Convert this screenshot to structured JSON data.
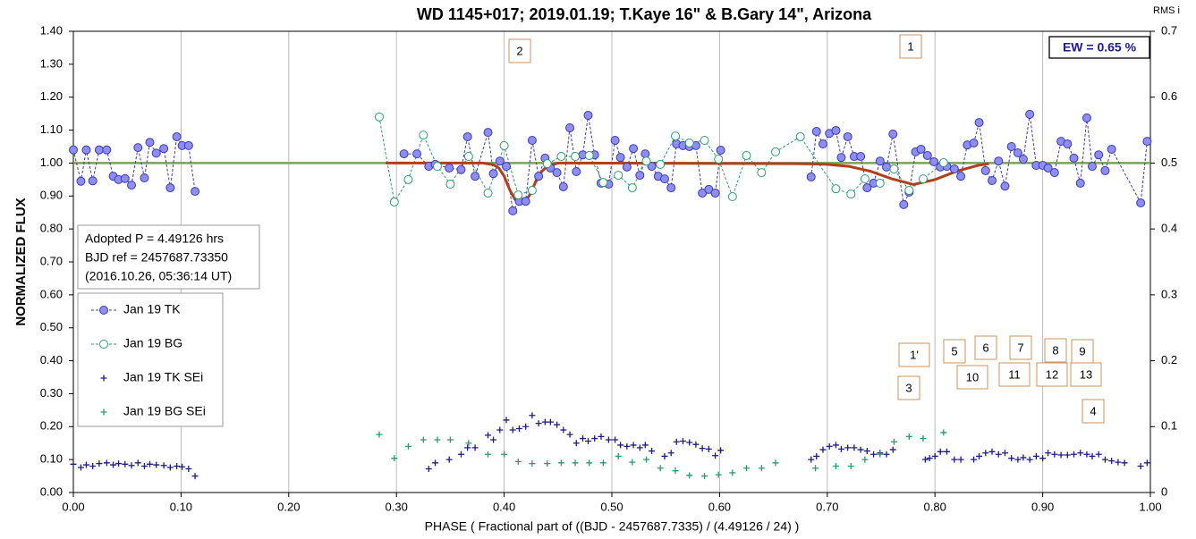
{
  "chart_data": {
    "type": "scatter",
    "title": "WD 1145+017; 2019.01.19; T.Kaye 16\" & B.Gary 14\", Arizona",
    "x_label": "PHASE ( Fractional part of ((BJD - 2457687.7335) / (4.49126 / 24) )",
    "y_label": "NORMALIZED FLUX",
    "y2_label": "RMS i",
    "xlim": [
      0,
      1
    ],
    "ylim": [
      0,
      1.4
    ],
    "y2lim": [
      0,
      0.7
    ],
    "xticks": [
      {
        "value": 0,
        "label": "0.00"
      },
      {
        "value": 0.1,
        "label": "0.10"
      },
      {
        "value": 0.2,
        "label": "0.20"
      },
      {
        "value": 0.3,
        "label": "0.30"
      },
      {
        "value": 0.4,
        "label": "0.40"
      },
      {
        "value": 0.5,
        "label": "0.50"
      },
      {
        "value": 0.6,
        "label": "0.60"
      },
      {
        "value": 0.7,
        "label": "0.70"
      },
      {
        "value": 0.8,
        "label": "0.80"
      },
      {
        "value": 0.9,
        "label": "0.90"
      },
      {
        "value": 1,
        "label": "1.00"
      }
    ],
    "yticks": [
      {
        "value": 0,
        "label": "0.00"
      },
      {
        "value": 0.1,
        "label": "0.10"
      },
      {
        "value": 0.2,
        "label": "0.20"
      },
      {
        "value": 0.3,
        "label": "0.30"
      },
      {
        "value": 0.4,
        "label": "0.40"
      },
      {
        "value": 0.5,
        "label": "0.50"
      },
      {
        "value": 0.6,
        "label": "0.60"
      },
      {
        "value": 0.7,
        "label": "0.70"
      },
      {
        "value": 0.8,
        "label": "0.80"
      },
      {
        "value": 0.9,
        "label": "0.90"
      },
      {
        "value": 1,
        "label": "1.00"
      },
      {
        "value": 1.1,
        "label": "1.10"
      },
      {
        "value": 1.2,
        "label": "1.20"
      },
      {
        "value": 1.3,
        "label": "1.30"
      },
      {
        "value": 1.4,
        "label": "1.40"
      }
    ],
    "y2ticks": [
      0,
      0.1,
      0.2,
      0.3,
      0.4,
      0.5,
      0.6,
      0.7
    ],
    "xgrid": true,
    "series": [
      {
        "name": "Jan 19 TK",
        "color": "#3a3ab8",
        "fill": "#8e8ef2",
        "marker": "circle",
        "line": "dashed",
        "x": [
          0,
          0.007,
          0.012,
          0.018,
          0.024,
          0.031,
          0.037,
          0.042,
          0.048,
          0.054,
          0.06,
          0.066,
          0.071,
          0.077,
          0.084,
          0.09,
          0.096,
          0.101,
          0.107,
          0.113,
          null,
          0.307,
          0.319,
          0.33,
          0.336,
          0.349,
          0.36,
          0.366,
          0.373,
          0.385,
          0.39,
          0.396,
          0.402,
          0.408,
          0.414,
          0.42,
          0.426,
          0.432,
          0.438,
          0.443,
          0.449,
          0.455,
          0.461,
          0.467,
          0.473,
          0.478,
          0.484,
          0.49,
          0.497,
          0.503,
          0.508,
          0.514,
          0.52,
          0.526,
          0.531,
          0.537,
          0.543,
          0.549,
          0.555,
          0.56,
          0.566,
          0.572,
          0.578,
          0.584,
          0.59,
          0.596,
          0.601,
          null,
          0.685,
          0.69,
          0.696,
          0.702,
          0.708,
          0.713,
          0.719,
          0.725,
          0.731,
          0.737,
          0.743,
          0.749,
          0.755,
          0.761,
          0.771,
          0.776,
          0.782,
          0.787,
          0.793,
          0.799,
          0.805,
          0.811,
          0.818,
          0.824,
          0.83,
          0.836,
          0.841,
          0.847,
          0.853,
          0.859,
          0.865,
          0.871,
          0.877,
          0.882,
          0.888,
          0.894,
          0.9,
          0.905,
          0.911,
          0.917,
          0.923,
          0.929,
          0.935,
          0.941,
          0.946,
          0.952,
          0.958,
          0.964,
          0.991,
          0.997
        ],
        "values": [
          1.04,
          0.945,
          1.04,
          0.946,
          1.04,
          1.04,
          0.96,
          0.95,
          0.953,
          0.933,
          1.047,
          0.955,
          1.063,
          1.03,
          1.044,
          0.925,
          1.08,
          1.053,
          1.053,
          0.914,
          null,
          1.028,
          1.028,
          0.99,
          0.996,
          0.985,
          0.98,
          1.08,
          0.96,
          1.093,
          0.968,
          1.006,
          0.99,
          0.855,
          0.884,
          0.884,
          1.069,
          0.96,
          1.015,
          0.985,
          0.971,
          0.928,
          1.107,
          0.974,
          1.025,
          1.145,
          1.025,
          0.939,
          0.936,
          1.069,
          1.017,
          0.988,
          1.044,
          0.963,
          1.028,
          0.99,
          0.96,
          0.952,
          0.925,
          1.058,
          1.053,
          1.05,
          1.053,
          0.909,
          0.92,
          0.909,
          1.039,
          null,
          0.958,
          1.096,
          1.058,
          1.09,
          1.099,
          1.017,
          1.08,
          1.02,
          1.02,
          0.925,
          0.939,
          1.006,
          0.988,
          1.088,
          0.874,
          0.912,
          1.034,
          1.042,
          1.023,
          1.004,
          0.988,
          0.99,
          0.982,
          0.96,
          1.055,
          1.061,
          1.123,
          0.977,
          0.947,
          1.006,
          0.93,
          1.05,
          1.031,
          1.012,
          1.148,
          0.993,
          0.993,
          0.985,
          0.971,
          1.066,
          1.058,
          1.015,
          0.939,
          1.137,
          0.99,
          1.025,
          0.977,
          1.042,
          0.879,
          1.066
        ]
      },
      {
        "name": "Jan 19 BG",
        "color": "#2a9e6c",
        "fill": "#ffffff",
        "marker": "circle",
        "line": "dashed",
        "x": [
          0.284,
          0.298,
          0.311,
          0.325,
          0.338,
          0.35,
          0.367,
          0.385,
          0.4,
          0.413,
          0.426,
          0.44,
          0.453,
          0.466,
          0.479,
          0.492,
          0.506,
          0.519,
          0.532,
          0.545,
          0.559,
          0.572,
          0.586,
          0.599,
          0.612,
          0.625,
          0.639,
          0.652,
          0.675,
          0.708,
          0.722,
          0.735,
          0.749,
          0.762,
          0.776,
          0.789,
          0.808
        ],
        "values": [
          1.14,
          0.882,
          0.95,
          1.085,
          0.99,
          0.936,
          1.02,
          0.909,
          1.053,
          0.903,
          0.917,
          0.998,
          1.02,
          1.02,
          1.023,
          0.941,
          0.963,
          0.925,
          1.006,
          0.996,
          1.082,
          1.061,
          1.069,
          1.012,
          0.898,
          1.023,
          0.971,
          1.034,
          1.08,
          0.922,
          0.906,
          0.952,
          0.939,
          0.982,
          0.917,
          0.952,
          1.001
        ]
      },
      {
        "name": "Jan 19 TK SEi",
        "color": "#1c1c86",
        "marker": "plus",
        "axis": "y2",
        "x": [
          0,
          0.007,
          0.012,
          0.018,
          0.024,
          0.031,
          0.037,
          0.042,
          0.048,
          0.054,
          0.06,
          0.066,
          0.071,
          0.077,
          0.084,
          0.09,
          0.096,
          0.101,
          0.107,
          0.113,
          0.33,
          0.336,
          0.349,
          0.36,
          0.366,
          0.373,
          0.385,
          0.39,
          0.396,
          0.402,
          0.408,
          0.414,
          0.42,
          0.426,
          0.432,
          0.438,
          0.443,
          0.449,
          0.455,
          0.461,
          0.467,
          0.473,
          0.478,
          0.484,
          0.49,
          0.497,
          0.503,
          0.508,
          0.514,
          0.52,
          0.526,
          0.531,
          0.537,
          0.549,
          0.555,
          0.56,
          0.566,
          0.572,
          0.578,
          0.584,
          0.59,
          0.596,
          0.601,
          0.685,
          0.69,
          0.696,
          0.702,
          0.708,
          0.713,
          0.719,
          0.725,
          0.731,
          0.737,
          0.743,
          0.749,
          0.755,
          0.761,
          0.791,
          0.795,
          0.8,
          0.805,
          0.811,
          0.818,
          0.824,
          0.836,
          0.841,
          0.847,
          0.853,
          0.859,
          0.865,
          0.871,
          0.877,
          0.882,
          0.888,
          0.894,
          0.9,
          0.905,
          0.911,
          0.917,
          0.923,
          0.929,
          0.935,
          0.941,
          0.946,
          0.952,
          0.958,
          0.964,
          0.97,
          0.976,
          0.991,
          0.997
        ],
        "values": [
          0.043,
          0.038,
          0.042,
          0.04,
          0.044,
          0.045,
          0.042,
          0.044,
          0.043,
          0.041,
          0.045,
          0.04,
          0.043,
          0.042,
          0.041,
          0.038,
          0.04,
          0.039,
          0.036,
          0.025,
          0.036,
          0.045,
          0.05,
          0.058,
          0.068,
          0.068,
          0.087,
          0.08,
          0.095,
          0.11,
          0.095,
          0.097,
          0.1,
          0.117,
          0.105,
          0.107,
          0.107,
          0.103,
          0.095,
          0.088,
          0.075,
          0.082,
          0.078,
          0.082,
          0.085,
          0.08,
          0.08,
          0.072,
          0.07,
          0.072,
          0.068,
          0.072,
          0.063,
          0.055,
          0.06,
          0.077,
          0.078,
          0.076,
          0.073,
          0.067,
          0.066,
          0.056,
          0.064,
          0.05,
          0.055,
          0.065,
          0.07,
          0.072,
          0.066,
          0.068,
          0.068,
          0.065,
          0.063,
          0.058,
          0.06,
          0.058,
          0.065,
          0.05,
          0.052,
          0.055,
          0.062,
          0.062,
          0.05,
          0.05,
          0.05,
          0.055,
          0.06,
          0.062,
          0.058,
          0.06,
          0.052,
          0.05,
          0.053,
          0.05,
          0.055,
          0.052,
          0.06,
          0.058,
          0.057,
          0.057,
          0.058,
          0.06,
          0.058,
          0.055,
          0.058,
          0.05,
          0.048,
          0.046,
          0.045,
          0.04,
          0.045
        ]
      },
      {
        "name": "Jan 19 BG SEi",
        "color": "#2a9a6a",
        "marker": "plus",
        "axis": "y2",
        "x": [
          0.284,
          0.298,
          0.311,
          0.325,
          0.338,
          0.35,
          0.367,
          0.385,
          0.4,
          0.413,
          0.426,
          0.44,
          0.453,
          0.466,
          0.479,
          0.492,
          0.506,
          0.519,
          0.532,
          0.545,
          0.559,
          0.572,
          0.586,
          0.599,
          0.612,
          0.625,
          0.639,
          0.652,
          0.689,
          0.708,
          0.722,
          0.735,
          0.749,
          0.762,
          0.776,
          0.789,
          0.808
        ],
        "values": [
          0.088,
          0.052,
          0.07,
          0.08,
          0.08,
          0.08,
          0.075,
          0.058,
          0.058,
          0.047,
          0.044,
          0.044,
          0.045,
          0.045,
          0.045,
          0.045,
          0.055,
          0.046,
          0.05,
          0.037,
          0.033,
          0.026,
          0.025,
          0.027,
          0.03,
          0.037,
          0.037,
          0.045,
          0.037,
          0.04,
          0.04,
          0.05,
          0.058,
          0.077,
          0.085,
          0.082,
          0.091
        ]
      }
    ],
    "reference_line": {
      "value": 1,
      "color": "#7aa35a"
    },
    "model": {
      "color": "#b0401c",
      "x": [
        0.29,
        0.38,
        0.39,
        0.395,
        0.4,
        0.405,
        0.41,
        0.415,
        0.42,
        0.425,
        0.43,
        0.435,
        0.44,
        0.45,
        0.68,
        0.7,
        0.72,
        0.74,
        0.76,
        0.78,
        0.8,
        0.82,
        0.84,
        0.85
      ],
      "values": [
        1,
        1,
        0.995,
        0.985,
        0.96,
        0.92,
        0.89,
        0.88,
        0.885,
        0.91,
        0.95,
        0.975,
        0.99,
        1,
        0.998,
        0.996,
        0.99,
        0.975,
        0.952,
        0.935,
        0.95,
        0.975,
        0.993,
        0.998
      ]
    },
    "ew_label": "EW =  0.65 %",
    "info_lines": [
      "Adopted P = 4.49126 hrs",
      "BJD ref = 2457687.73350",
      "(2016.10.26, 05:36:14 UT)"
    ],
    "annotations": [
      "2",
      "1",
      "1'",
      "3",
      "4",
      "5",
      "6",
      "7",
      "8",
      "9",
      "10",
      "11",
      "12",
      "13"
    ]
  }
}
